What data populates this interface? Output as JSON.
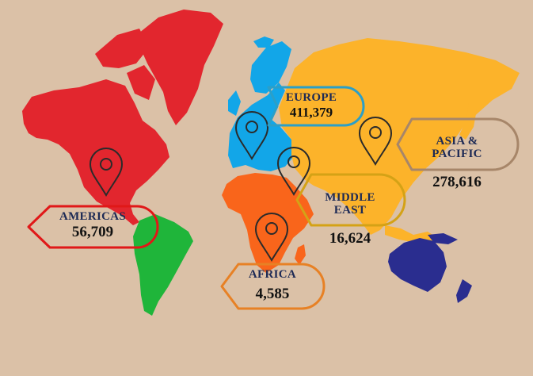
{
  "regions": [
    {
      "id": "europe",
      "name": "EUROPE",
      "value": "411,379",
      "color": "#2b9fc8"
    },
    {
      "id": "asia",
      "name": "ASIA &\nPACIFIC",
      "value": "278,616",
      "color": "#a78669"
    },
    {
      "id": "middle_east",
      "name": "MIDDLE\nEAST",
      "value": "16,624",
      "color": "#d4a216"
    },
    {
      "id": "americas",
      "name": "AMERICAS",
      "value": "56,709",
      "color": "#e01818"
    },
    {
      "id": "africa",
      "name": "AFRICA",
      "value": "4,585",
      "color": "#e78125"
    }
  ],
  "map_colors": {
    "north_america": "#e2262e",
    "south_america": "#1fb53a",
    "europe": "#12a6e8",
    "asia": "#fcb32a",
    "africa": "#f9651b",
    "oceania": "#2a2d8f",
    "background": "#dbc1a7"
  },
  "icons": [
    "map-pin-icon"
  ]
}
